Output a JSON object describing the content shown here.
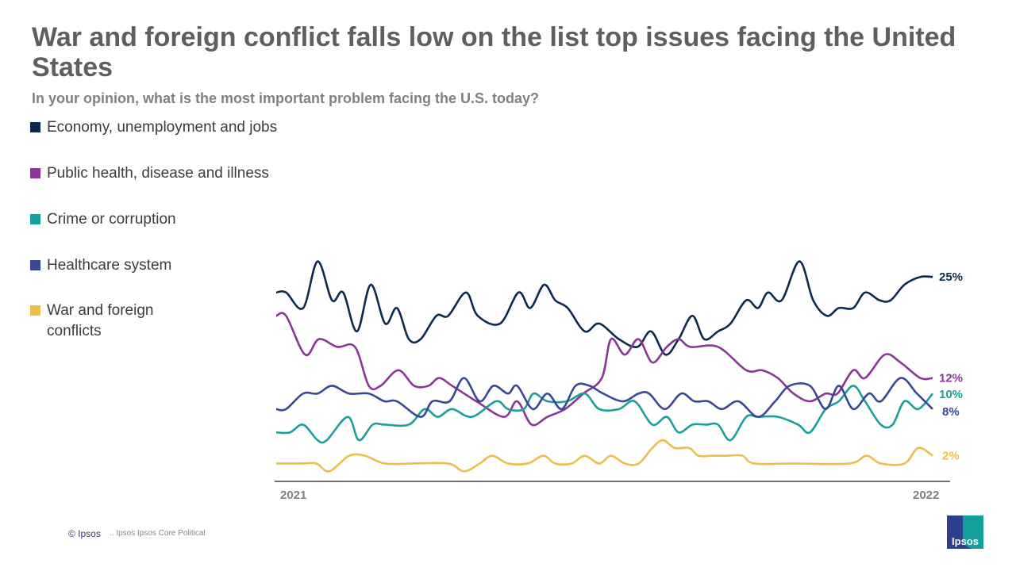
{
  "title": "War and foreign conflict falls low on the list top issues facing the United States",
  "subtitle": "In your opinion, what is the most important problem facing the U.S. today?",
  "footer": {
    "copyright": "© Ipsos",
    "note": ".. Ipsos Ipsos Core Political"
  },
  "logo": {
    "text": "Ipsos"
  },
  "chart_data": {
    "type": "line",
    "title": "War and foreign conflict falls low on the list top issues facing the United States",
    "subtitle": "In your opinion, what is the most important problem facing the U.S. today?",
    "xlabel": "",
    "ylabel": "",
    "x_tick_labels": [
      "2021",
      "2022"
    ],
    "xlim": [
      2021.0,
      2022.0
    ],
    "ylim": [
      -1.3,
      29
    ],
    "grid": false,
    "legend_position": "left",
    "series": [
      {
        "name": "Economy, unemployment  and jobs",
        "color": "#0d2a4e",
        "end_label": "25%",
        "x": [
          2021.0,
          2021.015,
          2021.041,
          2021.063,
          2021.085,
          2021.102,
          2021.123,
          2021.144,
          2021.166,
          2021.184,
          2021.202,
          2021.22,
          2021.244,
          2021.262,
          2021.289,
          2021.307,
          2021.341,
          2021.369,
          2021.387,
          2021.408,
          2021.425,
          2021.444,
          2021.47,
          2021.492,
          2021.522,
          2021.55,
          2021.571,
          2021.593,
          2021.613,
          2021.634,
          2021.652,
          2021.673,
          2021.692,
          2021.716,
          2021.734,
          2021.749,
          2021.77,
          2021.797,
          2021.818,
          2021.839,
          2021.857,
          2021.879,
          2021.897,
          2021.919,
          2021.936,
          2021.957,
          2021.981,
          2022.0
        ],
        "values": [
          23,
          23,
          21,
          27,
          22,
          23,
          18,
          24,
          19,
          21,
          17,
          17,
          20,
          20,
          23,
          20,
          19,
          23,
          21,
          24,
          22,
          21,
          18,
          19,
          17,
          16,
          18,
          15,
          17,
          20,
          17,
          18,
          19,
          22,
          21,
          23,
          22,
          27,
          22,
          20,
          21,
          21,
          23,
          22,
          22,
          24,
          25,
          25
        ]
      },
      {
        "name": "Public health, disease and illness",
        "color": "#8b3597",
        "end_label": "12%",
        "x": [
          2021.0,
          2021.015,
          2021.044,
          2021.065,
          2021.093,
          2021.12,
          2021.141,
          2021.159,
          2021.186,
          2021.21,
          2021.232,
          2021.248,
          2021.268,
          2021.305,
          2021.347,
          2021.367,
          2021.389,
          2021.413,
          2021.44,
          2021.468,
          2021.496,
          2021.51,
          2021.531,
          2021.552,
          2021.573,
          2021.595,
          2021.613,
          2021.631,
          2021.673,
          2021.716,
          2021.74,
          2021.764,
          2021.788,
          2021.813,
          2021.837,
          2021.855,
          2021.879,
          2021.897,
          2021.927,
          2021.951,
          2021.981,
          2022.0
        ],
        "values": [
          20,
          20,
          15,
          17,
          16,
          16,
          11,
          11,
          13,
          11,
          11,
          12,
          11,
          9,
          7,
          9,
          6,
          7,
          8,
          10,
          12,
          17,
          15,
          17,
          14,
          16,
          17,
          16,
          16,
          13,
          13,
          12,
          10,
          9,
          10,
          10,
          13,
          12,
          15,
          14,
          12,
          12
        ]
      },
      {
        "name": "Crime or corruption",
        "color": "#1a9f9b",
        "end_label": "10%",
        "x": [
          2021.0,
          2021.021,
          2021.041,
          2021.063,
          2021.077,
          2021.109,
          2021.126,
          2021.147,
          2021.165,
          2021.202,
          2021.226,
          2021.246,
          2021.268,
          2021.298,
          2021.335,
          2021.353,
          2021.377,
          2021.392,
          2021.413,
          2021.443,
          2021.47,
          2021.492,
          2021.522,
          2021.546,
          2021.573,
          2021.595,
          2021.613,
          2021.634,
          2021.655,
          2021.673,
          2021.692,
          2021.716,
          2021.734,
          2021.764,
          2021.795,
          2021.813,
          2021.837,
          2021.857,
          2021.879,
          2021.897,
          2021.921,
          2021.939,
          2021.957,
          2021.978,
          2022.0
        ],
        "values": [
          5,
          5,
          6,
          4,
          4,
          7,
          4,
          6,
          6,
          6,
          8,
          7,
          8,
          7,
          9,
          8,
          8,
          10,
          9,
          9,
          10,
          8,
          8,
          9,
          6,
          7,
          5,
          6,
          6,
          6,
          4,
          7,
          7,
          7,
          6,
          5,
          8,
          9,
          11,
          9,
          6,
          6,
          9,
          8,
          10
        ]
      },
      {
        "name": "Healthcare system",
        "color": "#394896",
        "end_label": "8%",
        "x": [
          2021.0,
          2021.015,
          2021.041,
          2021.063,
          2021.085,
          2021.111,
          2021.141,
          2021.165,
          2021.184,
          2021.22,
          2021.238,
          2021.264,
          2021.286,
          2021.31,
          2021.331,
          2021.353,
          2021.367,
          2021.391,
          2021.413,
          2021.435,
          2021.456,
          2021.477,
          2021.498,
          2021.528,
          2021.552,
          2021.568,
          2021.592,
          2021.617,
          2021.637,
          2021.658,
          2021.679,
          2021.704,
          2021.734,
          2021.76,
          2021.782,
          2021.813,
          2021.837,
          2021.857,
          2021.879,
          2021.903,
          2021.921,
          2021.951,
          2021.976,
          2022.0
        ],
        "values": [
          8,
          8,
          10,
          10,
          11,
          10,
          10,
          9,
          9,
          7,
          9,
          9,
          12,
          9,
          11,
          10,
          11,
          8,
          10,
          8,
          11,
          11,
          10,
          9,
          10,
          10,
          8,
          10,
          9,
          9,
          8,
          9,
          7,
          9,
          11,
          11,
          8,
          11,
          8,
          10,
          9,
          12,
          10,
          8
        ]
      },
      {
        "name": "War and foreign conflicts",
        "color": "#ebbf4a",
        "end_label": "2%",
        "x": [
          2021.0,
          2021.039,
          2021.061,
          2021.081,
          2021.111,
          2021.135,
          2021.165,
          2021.208,
          2021.262,
          2021.286,
          2021.31,
          2021.329,
          2021.353,
          2021.383,
          2021.407,
          2021.425,
          2021.45,
          2021.47,
          2021.492,
          2021.51,
          2021.531,
          2021.552,
          2021.573,
          2021.589,
          2021.607,
          2021.629,
          2021.643,
          2021.661,
          2021.685,
          2021.71,
          2021.728,
          2021.788,
          2021.873,
          2021.899,
          2021.921,
          2021.957,
          2021.978,
          2022.0
        ],
        "values": [
          1,
          1,
          1,
          0,
          2,
          2,
          1,
          1,
          1,
          0,
          1,
          2,
          1,
          1,
          2,
          1,
          1,
          2,
          1,
          2,
          1,
          1,
          3,
          4,
          3,
          3,
          2,
          2,
          2,
          2,
          1,
          1,
          1,
          2,
          1,
          1,
          3,
          2
        ]
      }
    ]
  }
}
